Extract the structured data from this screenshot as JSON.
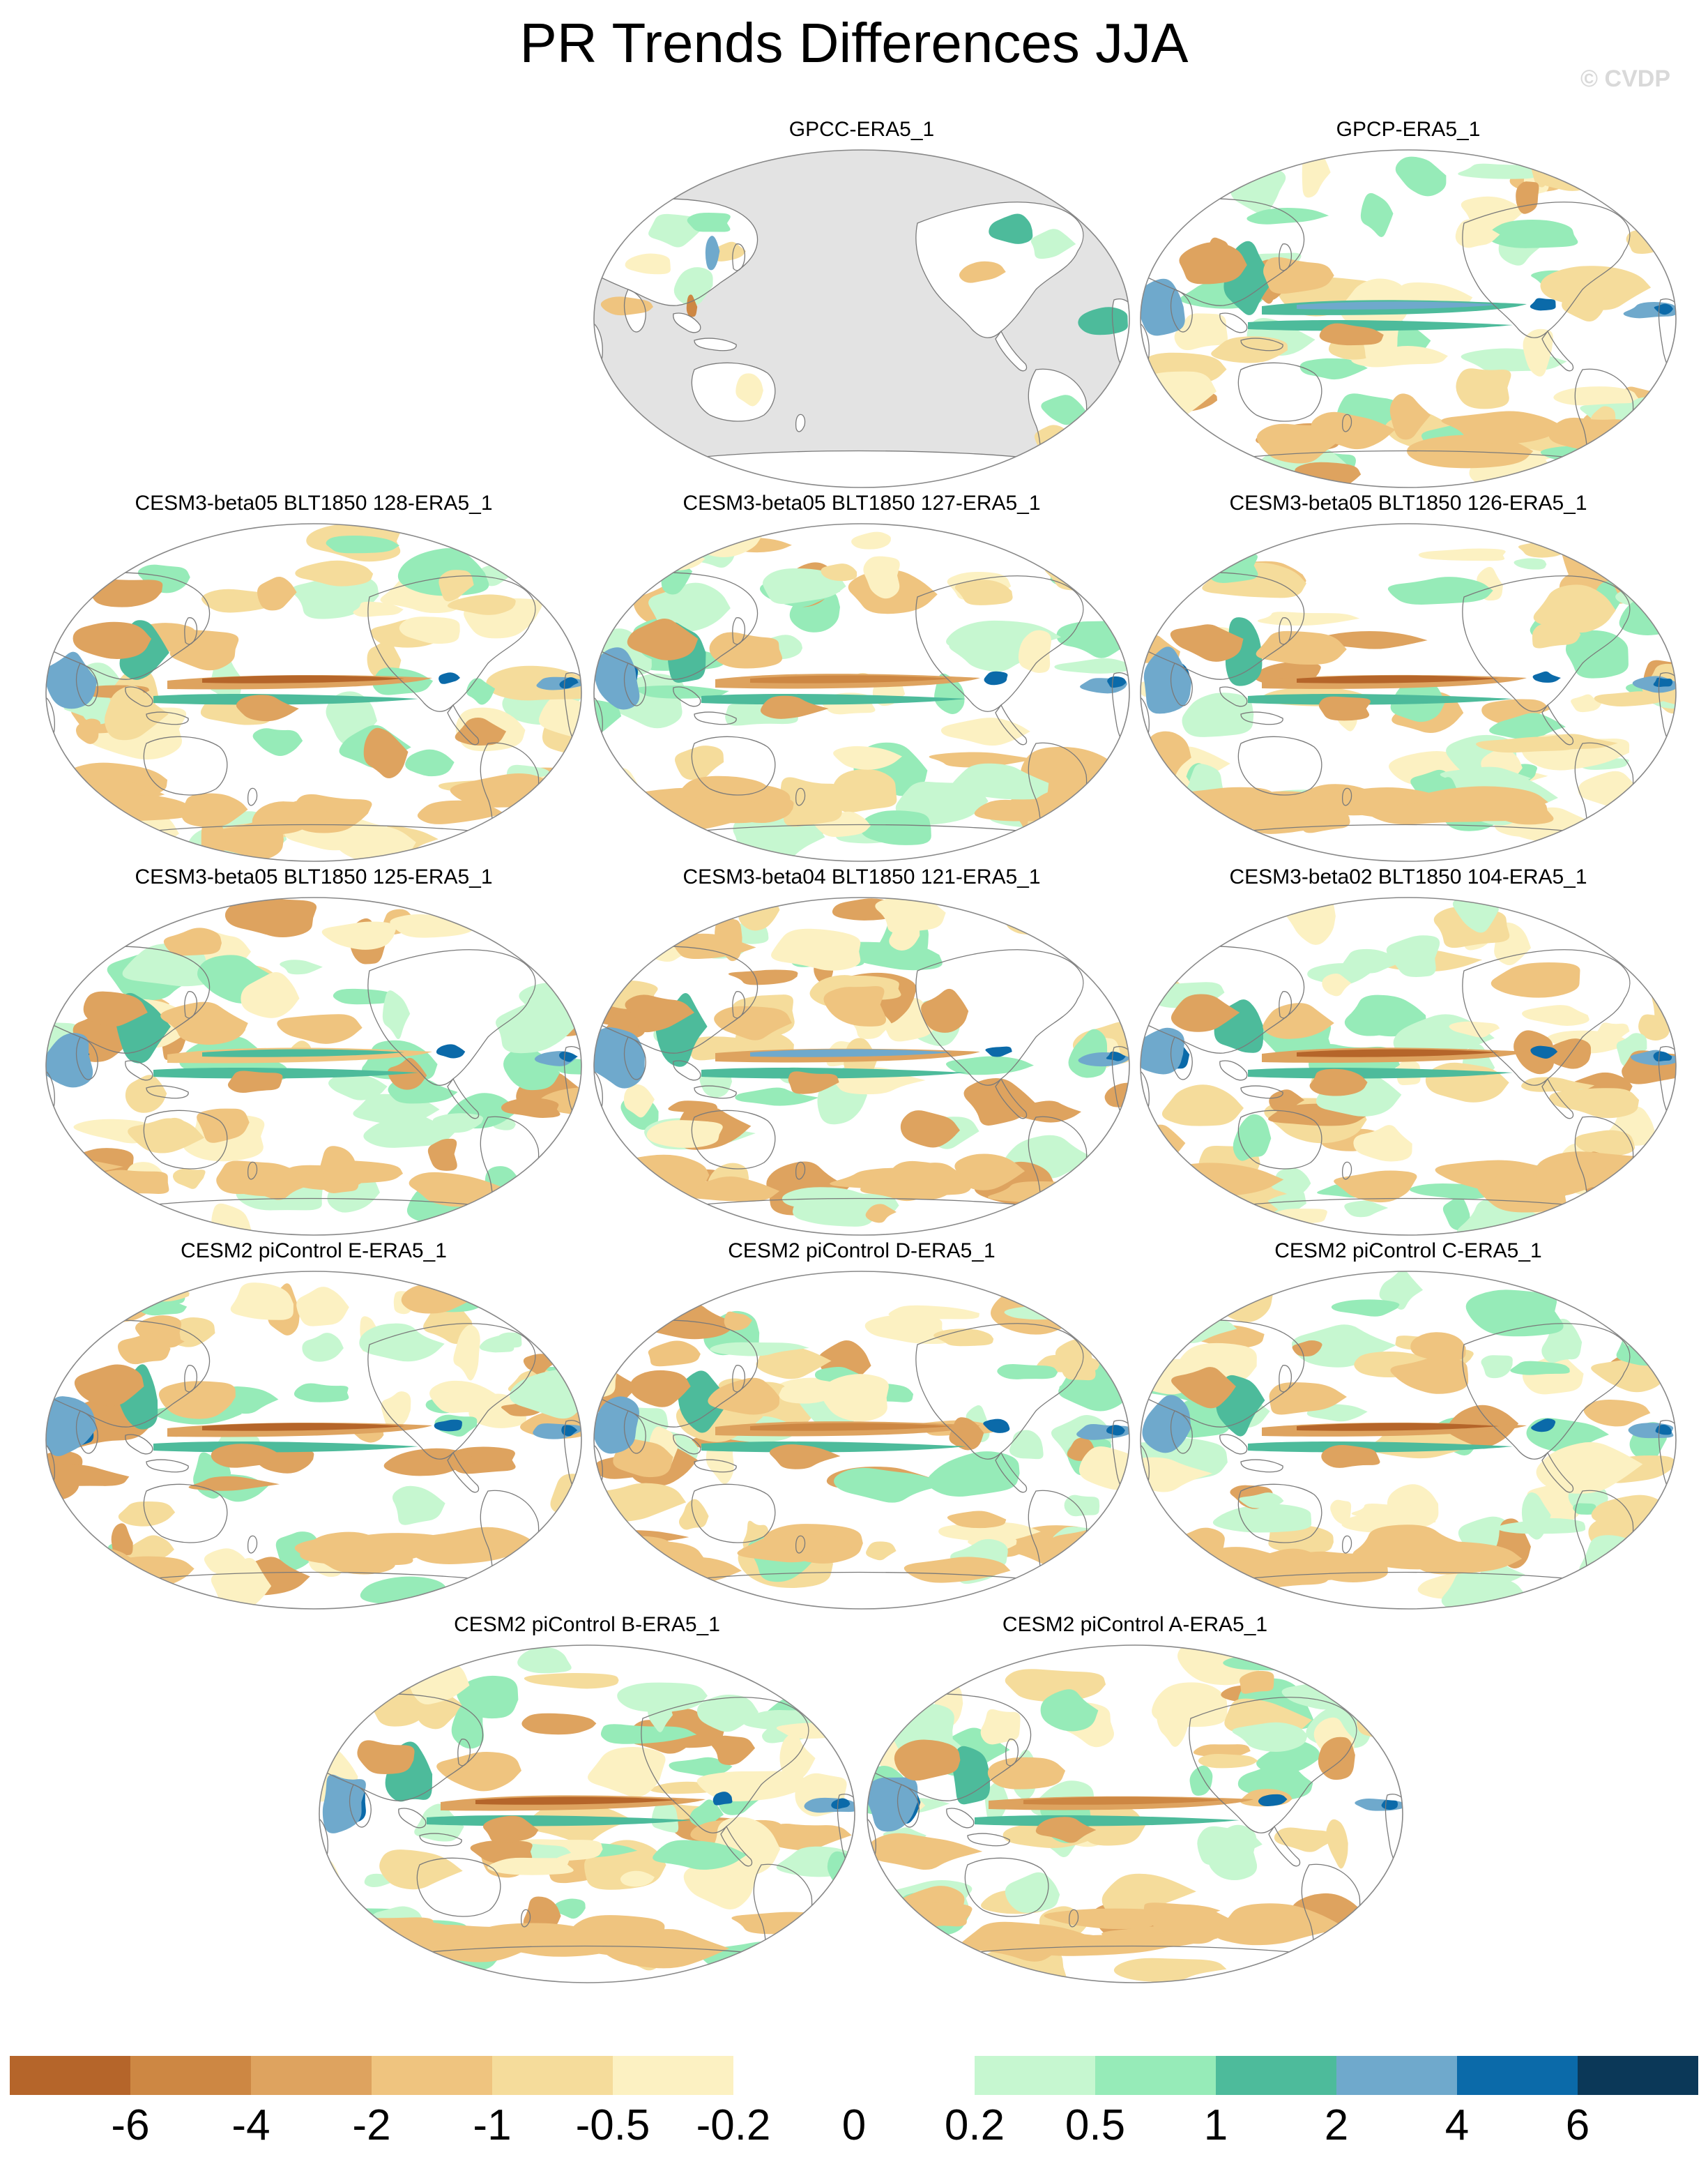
{
  "title": "PR Trends Differences JJA",
  "watermark": "© CVDP",
  "panels": [
    {
      "label": "GPCC-ERA5_1",
      "land_only": true
    },
    {
      "label": "GPCP-ERA5_1",
      "land_only": false
    },
    {
      "label": "CESM3-beta05 BLT1850 128-ERA5_1",
      "land_only": false
    },
    {
      "label": "CESM3-beta05 BLT1850 127-ERA5_1",
      "land_only": false
    },
    {
      "label": "CESM3-beta05 BLT1850 126-ERA5_1",
      "land_only": false
    },
    {
      "label": "CESM3-beta05 BLT1850 125-ERA5_1",
      "land_only": false
    },
    {
      "label": "CESM3-beta04 BLT1850 121-ERA5_1",
      "land_only": false
    },
    {
      "label": "CESM3-beta02 BLT1850 104-ERA5_1",
      "land_only": false
    },
    {
      "label": "CESM2 piControl E-ERA5_1",
      "land_only": false
    },
    {
      "label": "CESM2 piControl D-ERA5_1",
      "land_only": false
    },
    {
      "label": "CESM2 piControl C-ERA5_1",
      "land_only": false
    },
    {
      "label": "CESM2 piControl B-ERA5_1",
      "land_only": false
    },
    {
      "label": "CESM2 piControl A-ERA5_1",
      "land_only": false
    }
  ],
  "colorbar": {
    "labels": [
      "-6",
      "-4",
      "-2",
      "-1",
      "-0.5",
      "-0.2",
      "0",
      "0.2",
      "0.5",
      "1",
      "2",
      "4",
      "6"
    ],
    "colors": [
      "#b5652a",
      "#cd8743",
      "#dea35f",
      "#efc47f",
      "#f5dc9b",
      "#fcf1c2",
      "#ffffff",
      "#ffffff",
      "#c6f7d0",
      "#96ebb8",
      "#4dbb9b",
      "#6fa9cc",
      "#0b6aa9",
      "#0b3858"
    ]
  },
  "colors": {
    "missing": "#e3e3e3",
    "coast": "#7a7a7a",
    "border": "#888888"
  }
}
